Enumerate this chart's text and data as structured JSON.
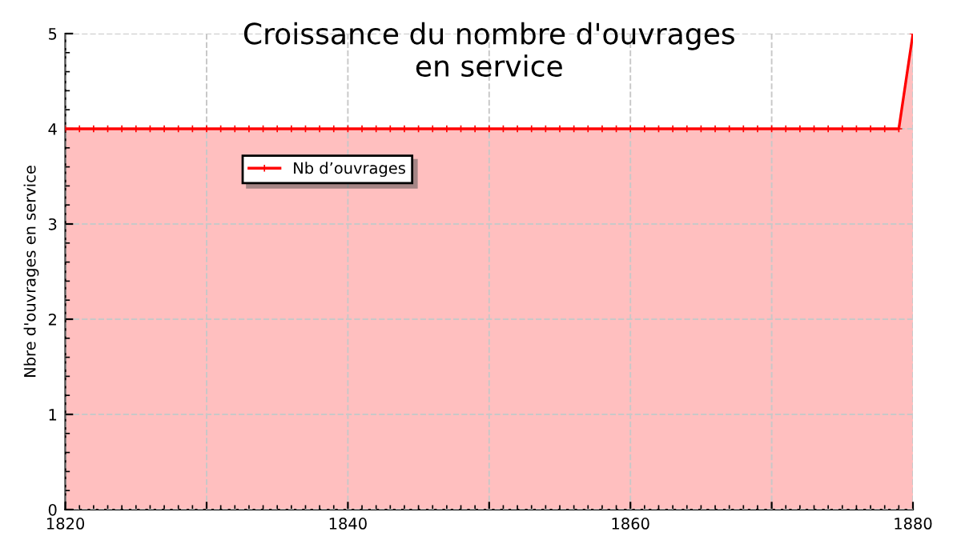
{
  "chart_data": {
    "type": "area",
    "title": "Croissance du nombre d'ouvrages\nen service",
    "ylabel": "Nbre d'ouvrages en service",
    "x": [
      1820,
      1821,
      1822,
      1823,
      1824,
      1825,
      1826,
      1827,
      1828,
      1829,
      1830,
      1831,
      1832,
      1833,
      1834,
      1835,
      1836,
      1837,
      1838,
      1839,
      1840,
      1841,
      1842,
      1843,
      1844,
      1845,
      1846,
      1847,
      1848,
      1849,
      1850,
      1851,
      1852,
      1853,
      1854,
      1855,
      1856,
      1857,
      1858,
      1859,
      1860,
      1861,
      1862,
      1863,
      1864,
      1865,
      1866,
      1867,
      1868,
      1869,
      1870,
      1871,
      1872,
      1873,
      1874,
      1875,
      1876,
      1877,
      1878,
      1879,
      1880
    ],
    "series": [
      {
        "name": "Nb d’ouvrages",
        "color": "#ff0000",
        "values": [
          4,
          4,
          4,
          4,
          4,
          4,
          4,
          4,
          4,
          4,
          4,
          4,
          4,
          4,
          4,
          4,
          4,
          4,
          4,
          4,
          4,
          4,
          4,
          4,
          4,
          4,
          4,
          4,
          4,
          4,
          4,
          4,
          4,
          4,
          4,
          4,
          4,
          4,
          4,
          4,
          4,
          4,
          4,
          4,
          4,
          4,
          4,
          4,
          4,
          4,
          4,
          4,
          4,
          4,
          4,
          4,
          4,
          4,
          4,
          4,
          5
        ]
      }
    ],
    "xlim": [
      1820,
      1880
    ],
    "ylim": [
      0,
      5
    ],
    "xticks": [
      1820,
      {
        "value": 1830,
        "label": null
      },
      1840,
      {
        "value": 1850,
        "label": null
      },
      1860,
      {
        "value": 1870,
        "label": null
      },
      1880
    ],
    "yticks": [
      0,
      1,
      2,
      3,
      4,
      5
    ],
    "grid": true,
    "legend": "top left",
    "marker": "cross",
    "line_style": "solid"
  }
}
